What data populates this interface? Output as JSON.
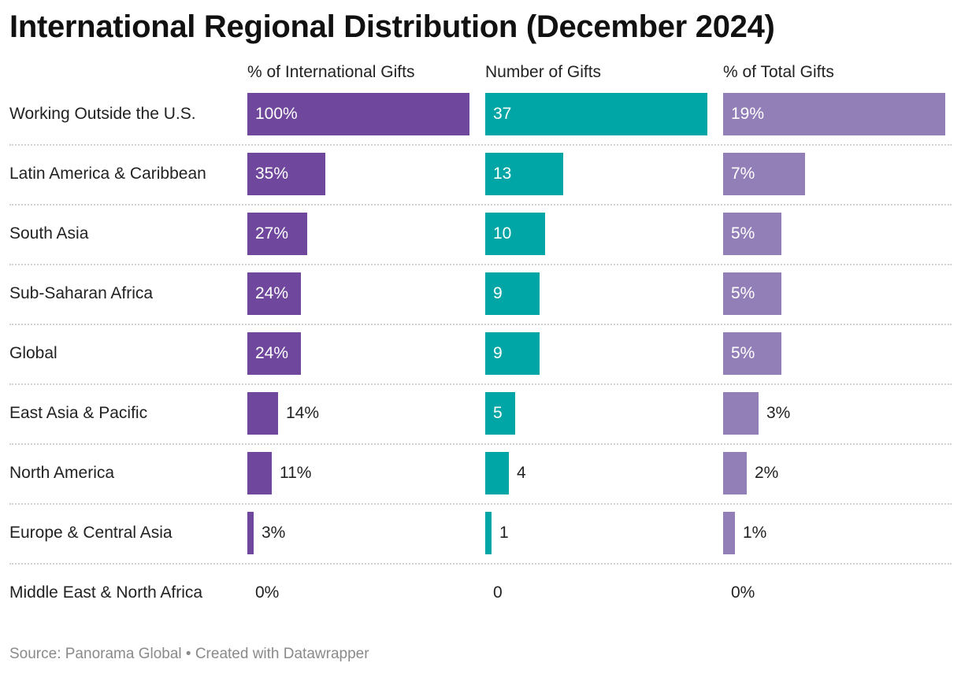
{
  "chart_data": {
    "type": "bar",
    "title": "International Regional Distribution (December 2024)",
    "categories": [
      "Working Outside the U.S.",
      "Latin America & Caribbean",
      "South Asia",
      "Sub-Saharan Africa",
      "Global",
      "East Asia & Pacific",
      "North America",
      "Europe & Central Asia",
      "Middle East & North Africa"
    ],
    "series": [
      {
        "name": "% of International Gifts",
        "values": [
          100,
          35,
          27,
          24,
          24,
          14,
          11,
          3,
          0
        ],
        "labels": [
          "100%",
          "35%",
          "27%",
          "24%",
          "24%",
          "14%",
          "11%",
          "3%",
          "0%"
        ],
        "max": 100,
        "color": "#6f479c"
      },
      {
        "name": "Number of Gifts",
        "values": [
          37,
          13,
          10,
          9,
          9,
          5,
          4,
          1,
          0
        ],
        "labels": [
          "37",
          "13",
          "10",
          "9",
          "9",
          "5",
          "4",
          "1",
          "0"
        ],
        "max": 37,
        "color": "#00a6a6"
      },
      {
        "name": "% of Total Gifts",
        "values": [
          19,
          7,
          5,
          5,
          5,
          3,
          2,
          1,
          0
        ],
        "labels": [
          "19%",
          "7%",
          "5%",
          "5%",
          "5%",
          "3%",
          "2%",
          "1%",
          "0%"
        ],
        "max": 19,
        "color": "#937fb8"
      }
    ],
    "source": "Source: Panorama Global • Created with Datawrapper"
  }
}
